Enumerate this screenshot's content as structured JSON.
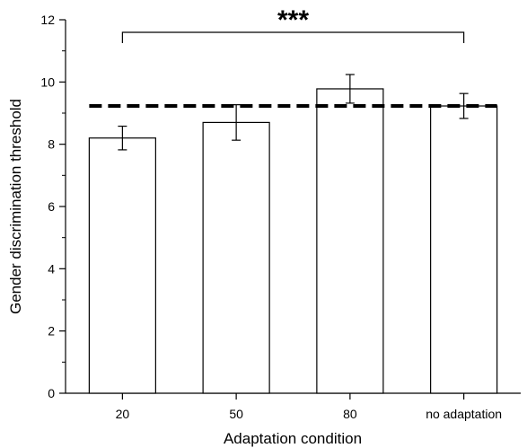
{
  "chart_data": {
    "type": "bar",
    "title": "",
    "xlabel": "Adaptation condition",
    "ylabel": "Gender discrimination threshold",
    "categories": [
      "20",
      "50",
      "80",
      "no adaptation"
    ],
    "values": [
      8.2,
      8.7,
      9.78,
      9.23
    ],
    "errors": [
      0.38,
      0.57,
      0.46,
      0.4
    ],
    "ylim": [
      0,
      12
    ],
    "yticks": [
      "0",
      "2",
      "4",
      "6",
      "8",
      "10",
      "12"
    ],
    "reference_line": {
      "value": 9.23,
      "style": "dashed"
    },
    "significance": {
      "label": "***",
      "from_category": "20",
      "to_category": "no adaptation"
    },
    "bar_fill": "#ffffff",
    "bar_stroke": "#000000",
    "grid": false,
    "legend": "none"
  }
}
